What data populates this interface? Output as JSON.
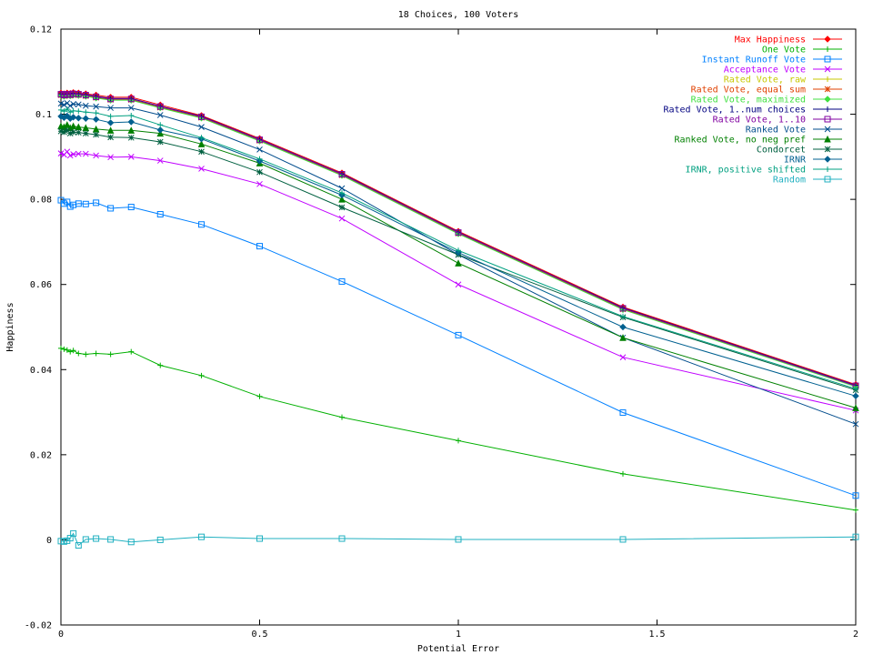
{
  "chart_data": {
    "type": "line",
    "title": "18 Choices, 100 Voters",
    "xlabel": "Potential Error",
    "ylabel": "Happiness",
    "xlim": [
      0,
      2
    ],
    "ylim": [
      -0.02,
      0.12
    ],
    "xticks": [
      0,
      0.5,
      1,
      1.5,
      2
    ],
    "xtick_labels": [
      "0",
      "0.5",
      "1",
      "1.5",
      "2"
    ],
    "yticks": [
      -0.02,
      0,
      0.02,
      0.04,
      0.06,
      0.08,
      0.1,
      0.12
    ],
    "ytick_labels": [
      "-0.02",
      "0",
      "0.02",
      "0.04",
      "0.06",
      "0.08",
      "0.1",
      "0.12"
    ],
    "grid": false,
    "legend_position": "top-right",
    "x": [
      0,
      0.0078,
      0.0156,
      0.0234,
      0.0312,
      0.0442,
      0.0625,
      0.0884,
      0.125,
      0.1768,
      0.25,
      0.3536,
      0.5,
      0.7071,
      1,
      1.4142,
      2
    ],
    "series": [
      {
        "name": "Max Happiness",
        "color": "#ff0000",
        "marker": "diamond",
        "values": [
          0.105,
          0.1048,
          0.105,
          0.1049,
          0.1051,
          0.105,
          0.1048,
          0.1045,
          0.104,
          0.104,
          0.1022,
          0.0997,
          0.0943,
          0.0862,
          0.0725,
          0.0547,
          0.0365
        ]
      },
      {
        "name": "One Vote",
        "color": "#00b000",
        "marker": "plus",
        "values": [
          0.045,
          0.0448,
          0.0446,
          0.0442,
          0.0445,
          0.0438,
          0.0436,
          0.0438,
          0.0436,
          0.0442,
          0.041,
          0.0386,
          0.0337,
          0.0288,
          0.0233,
          0.0155,
          0.007
        ]
      },
      {
        "name": "Instant Runoff Vote",
        "color": "#0080ff",
        "marker": "square",
        "values": [
          0.0798,
          0.079,
          0.0794,
          0.0783,
          0.0787,
          0.079,
          0.0789,
          0.0792,
          0.0779,
          0.0782,
          0.0765,
          0.0741,
          0.069,
          0.0607,
          0.0481,
          0.0299,
          0.0104
        ]
      },
      {
        "name": "Acceptance Vote",
        "color": "#c000ff",
        "marker": "x",
        "values": [
          0.0908,
          0.0905,
          0.0912,
          0.0903,
          0.0906,
          0.0907,
          0.0907,
          0.0903,
          0.0899,
          0.09,
          0.0891,
          0.0872,
          0.0836,
          0.0755,
          0.06,
          0.0429,
          0.0304
        ]
      },
      {
        "name": "Rated Vote, raw",
        "color": "#c8c800",
        "marker": "plus",
        "values": [
          0.1046,
          0.1044,
          0.1046,
          0.1045,
          0.1047,
          0.1046,
          0.1044,
          0.104,
          0.1035,
          0.1035,
          0.1017,
          0.0993,
          0.0939,
          0.0858,
          0.0721,
          0.0543,
          0.0362
        ]
      },
      {
        "name": "Rated Vote, equal sum",
        "color": "#e04000",
        "marker": "star",
        "values": [
          0.1045,
          0.1043,
          0.1045,
          0.1044,
          0.1046,
          0.1045,
          0.1043,
          0.1039,
          0.1034,
          0.1034,
          0.1016,
          0.0992,
          0.0938,
          0.0857,
          0.072,
          0.0542,
          0.0361
        ]
      },
      {
        "name": "Rated Vote, maximized",
        "color": "#40e040",
        "marker": "diamond",
        "values": [
          0.1044,
          0.1042,
          0.1044,
          0.1043,
          0.1045,
          0.1044,
          0.1042,
          0.1038,
          0.1033,
          0.1033,
          0.1015,
          0.0991,
          0.0937,
          0.0856,
          0.0719,
          0.0541,
          0.036
        ]
      },
      {
        "name": "Rated Vote, 1..num choices",
        "color": "#000080",
        "marker": "plus",
        "values": [
          0.1048,
          0.1046,
          0.1048,
          0.1047,
          0.1049,
          0.1048,
          0.1046,
          0.1042,
          0.1037,
          0.1037,
          0.1019,
          0.0995,
          0.0941,
          0.086,
          0.0723,
          0.0545,
          0.0363
        ]
      },
      {
        "name": "Rated Vote, 1..10",
        "color": "#8000a0",
        "marker": "square",
        "values": [
          0.1047,
          0.1045,
          0.1047,
          0.1046,
          0.1048,
          0.1047,
          0.1045,
          0.1041,
          0.1036,
          0.1036,
          0.1018,
          0.0994,
          0.094,
          0.0859,
          0.0722,
          0.0544,
          0.0362
        ]
      },
      {
        "name": "Ranked Vote",
        "color": "#004c8c",
        "marker": "x",
        "values": [
          0.1025,
          0.1022,
          0.1026,
          0.102,
          0.1024,
          0.1023,
          0.102,
          0.1018,
          0.1015,
          0.1015,
          0.0998,
          0.097,
          0.0917,
          0.0826,
          0.067,
          0.0475,
          0.0272
        ]
      },
      {
        "name": "Ranked Vote, no neg pref",
        "color": "#008000",
        "marker": "triangle",
        "values": [
          0.0972,
          0.097,
          0.0975,
          0.0968,
          0.0972,
          0.097,
          0.0968,
          0.0965,
          0.0962,
          0.0962,
          0.0955,
          0.093,
          0.0885,
          0.08,
          0.065,
          0.0475,
          0.031
        ]
      },
      {
        "name": "Condorcet",
        "color": "#006040",
        "marker": "star",
        "values": [
          0.096,
          0.0958,
          0.0962,
          0.0955,
          0.0958,
          0.0957,
          0.0955,
          0.0952,
          0.0946,
          0.0945,
          0.0935,
          0.0912,
          0.0864,
          0.0781,
          0.067,
          0.0523,
          0.0352
        ]
      },
      {
        "name": "IRNR",
        "color": "#006090",
        "marker": "diamond",
        "values": [
          0.0995,
          0.0992,
          0.0996,
          0.099,
          0.0993,
          0.0991,
          0.099,
          0.0988,
          0.098,
          0.0982,
          0.0963,
          0.0942,
          0.089,
          0.081,
          0.0675,
          0.05,
          0.0338
        ]
      },
      {
        "name": "IRNR, positive shifted",
        "color": "#00a080",
        "marker": "plus",
        "values": [
          0.101,
          0.1007,
          0.1012,
          0.1005,
          0.1008,
          0.1007,
          0.1005,
          0.1003,
          0.0995,
          0.0997,
          0.0975,
          0.0945,
          0.0895,
          0.0815,
          0.068,
          0.0525,
          0.0355
        ]
      },
      {
        "name": "Random",
        "color": "#20b0c0",
        "marker": "square",
        "values": [
          -0.0003,
          -0.0004,
          -0.0002,
          0.0004,
          0.0015,
          -0.0013,
          0.0001,
          0.0003,
          0.0001,
          -0.0005,
          0.0,
          0.0007,
          0.0003,
          0.0003,
          0.0001,
          0.0001,
          0.0007
        ]
      }
    ]
  }
}
